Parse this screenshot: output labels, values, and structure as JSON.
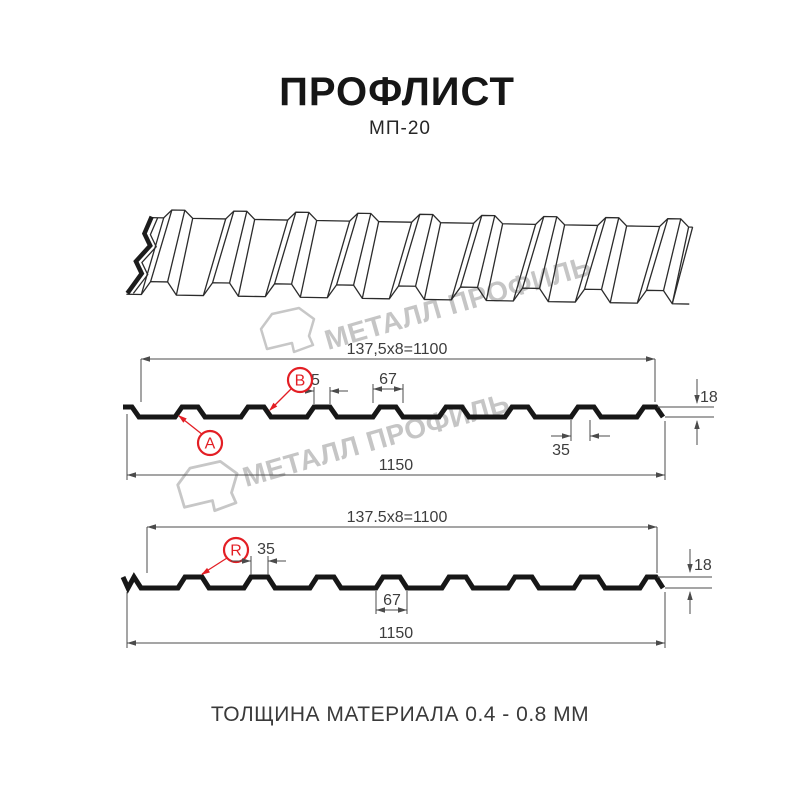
{
  "header": {
    "title": "ПРОФЛИСТ",
    "subtitle": "МП-20"
  },
  "watermark": {
    "text": "МЕТАЛЛ ПРОФИЛЬ"
  },
  "diagram1": {
    "labels": {
      "a": "A",
      "b": "B"
    },
    "dims": {
      "pitch": "137,5x8=1100",
      "rib_top": "35",
      "rib_base": "67",
      "height": "18",
      "rib_bottom": "35",
      "total_width": "1150"
    }
  },
  "diagram2": {
    "labels": {
      "r": "R"
    },
    "dims": {
      "pitch": "137.5x8=1100",
      "rib_top": "35",
      "rib_base": "67",
      "height": "18",
      "total_width": "1150"
    }
  },
  "footer": {
    "text": "ТОЛЩИНА МАТЕРИАЛА 0.4 - 0.8 ММ"
  },
  "colors": {
    "accent_red": "#e31e24",
    "drawing_black": "#171717",
    "dimension_gray": "#4b4b4b",
    "watermark_gray": "#c6c6c6"
  }
}
